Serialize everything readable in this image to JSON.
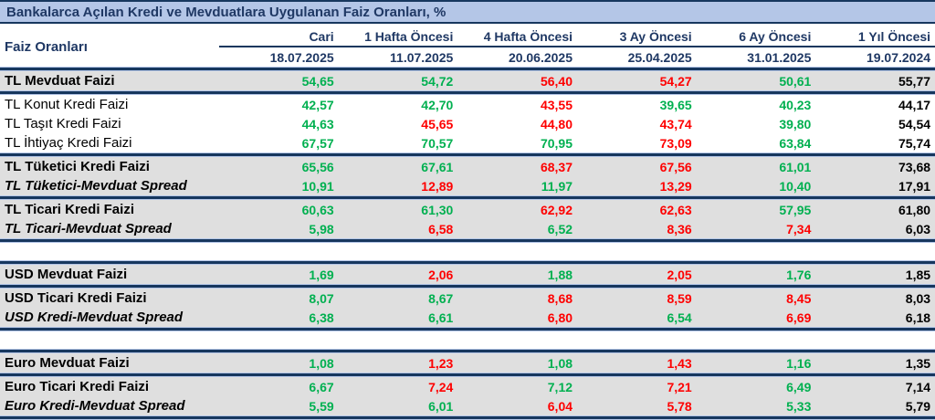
{
  "title": "Bankalarca Açılan Kredi ve Mevduatlara Uygulanan Faiz Oranları, %",
  "header": {
    "row_label": "Faiz Oranları",
    "columns": [
      {
        "period": "Cari",
        "date": "18.07.2025"
      },
      {
        "period": "1 Hafta Öncesi",
        "date": "11.07.2025"
      },
      {
        "period": "4 Hafta Öncesi",
        "date": "20.06.2025"
      },
      {
        "period": "3 Ay Öncesi",
        "date": "25.04.2025"
      },
      {
        "period": "6 Ay Öncesi",
        "date": "31.01.2025"
      },
      {
        "period": "1 Yıl Öncesi",
        "date": "19.07.2024"
      }
    ]
  },
  "colors": {
    "green": "#00b050",
    "red": "#fe0000",
    "black": "#000000",
    "navy": "#1f3864",
    "title_bg": "#b4c6e7",
    "row_gray": "#dfdfdf"
  },
  "rows": [
    {
      "label": "TL Mevduat Faizi",
      "style": "bold",
      "shade": true,
      "divider_after": true,
      "values": [
        {
          "value": "54,65",
          "color": "green"
        },
        {
          "value": "54,72",
          "color": "green"
        },
        {
          "value": "56,40",
          "color": "red"
        },
        {
          "value": "54,27",
          "color": "red"
        },
        {
          "value": "50,61",
          "color": "green"
        },
        {
          "value": "55,77",
          "color": "black"
        }
      ]
    },
    {
      "label": "TL Konut Kredi Faizi",
      "style": "regular",
      "shade": false,
      "values": [
        {
          "value": "42,57",
          "color": "green"
        },
        {
          "value": "42,70",
          "color": "green"
        },
        {
          "value": "43,55",
          "color": "red"
        },
        {
          "value": "39,65",
          "color": "green"
        },
        {
          "value": "40,23",
          "color": "green"
        },
        {
          "value": "44,17",
          "color": "black"
        }
      ]
    },
    {
      "label": "TL Taşıt Kredi Faizi",
      "style": "regular",
      "shade": false,
      "values": [
        {
          "value": "44,63",
          "color": "green"
        },
        {
          "value": "45,65",
          "color": "red"
        },
        {
          "value": "44,80",
          "color": "red"
        },
        {
          "value": "43,74",
          "color": "red"
        },
        {
          "value": "39,80",
          "color": "green"
        },
        {
          "value": "54,54",
          "color": "black"
        }
      ]
    },
    {
      "label": "TL İhtiyaç Kredi Faizi",
      "style": "regular",
      "shade": false,
      "divider_after": true,
      "values": [
        {
          "value": "67,57",
          "color": "green"
        },
        {
          "value": "70,57",
          "color": "green"
        },
        {
          "value": "70,95",
          "color": "green"
        },
        {
          "value": "73,09",
          "color": "red"
        },
        {
          "value": "63,84",
          "color": "green"
        },
        {
          "value": "75,74",
          "color": "black"
        }
      ]
    },
    {
      "label": "TL Tüketici Kredi Faizi",
      "style": "bold",
      "shade": true,
      "values": [
        {
          "value": "65,56",
          "color": "green"
        },
        {
          "value": "67,61",
          "color": "green"
        },
        {
          "value": "68,37",
          "color": "red"
        },
        {
          "value": "67,56",
          "color": "red"
        },
        {
          "value": "61,01",
          "color": "green"
        },
        {
          "value": "73,68",
          "color": "black"
        }
      ]
    },
    {
      "label": "TL Tüketici-Mevduat Spread",
      "style": "bold-italic",
      "shade": true,
      "divider_after": true,
      "values": [
        {
          "value": "10,91",
          "color": "green"
        },
        {
          "value": "12,89",
          "color": "red"
        },
        {
          "value": "11,97",
          "color": "green"
        },
        {
          "value": "13,29",
          "color": "red"
        },
        {
          "value": "10,40",
          "color": "green"
        },
        {
          "value": "17,91",
          "color": "black"
        }
      ]
    },
    {
      "label": "TL Ticari Kredi Faizi",
      "style": "bold",
      "shade": true,
      "values": [
        {
          "value": "60,63",
          "color": "green"
        },
        {
          "value": "61,30",
          "color": "green"
        },
        {
          "value": "62,92",
          "color": "red"
        },
        {
          "value": "62,63",
          "color": "red"
        },
        {
          "value": "57,95",
          "color": "green"
        },
        {
          "value": "61,80",
          "color": "black"
        }
      ]
    },
    {
      "label": "TL Ticari-Mevduat Spread",
      "style": "bold-italic",
      "shade": true,
      "divider_after": true,
      "gap_after": true,
      "values": [
        {
          "value": "5,98",
          "color": "green"
        },
        {
          "value": "6,58",
          "color": "red"
        },
        {
          "value": "6,52",
          "color": "green"
        },
        {
          "value": "8,36",
          "color": "red"
        },
        {
          "value": "7,34",
          "color": "red"
        },
        {
          "value": "6,03",
          "color": "black"
        }
      ]
    },
    {
      "label": "USD Mevduat Faizi",
      "style": "bold",
      "shade": true,
      "divider_before": true,
      "divider_after": true,
      "values": [
        {
          "value": "1,69",
          "color": "green"
        },
        {
          "value": "2,06",
          "color": "red"
        },
        {
          "value": "1,88",
          "color": "green"
        },
        {
          "value": "2,05",
          "color": "red"
        },
        {
          "value": "1,76",
          "color": "green"
        },
        {
          "value": "1,85",
          "color": "black"
        }
      ]
    },
    {
      "label": "USD Ticari Kredi Faizi",
      "style": "bold",
      "shade": true,
      "values": [
        {
          "value": "8,07",
          "color": "green"
        },
        {
          "value": "8,67",
          "color": "green"
        },
        {
          "value": "8,68",
          "color": "red"
        },
        {
          "value": "8,59",
          "color": "red"
        },
        {
          "value": "8,45",
          "color": "red"
        },
        {
          "value": "8,03",
          "color": "black"
        }
      ]
    },
    {
      "label": "USD Kredi-Mevduat Spread",
      "style": "bold-italic",
      "shade": true,
      "divider_after": true,
      "gap_after": true,
      "values": [
        {
          "value": "6,38",
          "color": "green"
        },
        {
          "value": "6,61",
          "color": "green"
        },
        {
          "value": "6,80",
          "color": "red"
        },
        {
          "value": "6,54",
          "color": "green"
        },
        {
          "value": "6,69",
          "color": "red"
        },
        {
          "value": "6,18",
          "color": "black"
        }
      ]
    },
    {
      "label": "Euro Mevduat Faizi",
      "style": "bold",
      "shade": true,
      "divider_before": true,
      "divider_after": true,
      "values": [
        {
          "value": "1,08",
          "color": "green"
        },
        {
          "value": "1,23",
          "color": "red"
        },
        {
          "value": "1,08",
          "color": "green"
        },
        {
          "value": "1,43",
          "color": "red"
        },
        {
          "value": "1,16",
          "color": "green"
        },
        {
          "value": "1,35",
          "color": "black"
        }
      ]
    },
    {
      "label": "Euro Ticari Kredi Faizi",
      "style": "bold",
      "shade": true,
      "values": [
        {
          "value": "6,67",
          "color": "green"
        },
        {
          "value": "7,24",
          "color": "red"
        },
        {
          "value": "7,12",
          "color": "green"
        },
        {
          "value": "7,21",
          "color": "red"
        },
        {
          "value": "6,49",
          "color": "green"
        },
        {
          "value": "7,14",
          "color": "black"
        }
      ]
    },
    {
      "label": "Euro Kredi-Mevduat Spread",
      "style": "bold-italic",
      "shade": true,
      "divider_after": true,
      "values": [
        {
          "value": "5,59",
          "color": "green"
        },
        {
          "value": "6,01",
          "color": "green"
        },
        {
          "value": "6,04",
          "color": "red"
        },
        {
          "value": "5,78",
          "color": "red"
        },
        {
          "value": "5,33",
          "color": "green"
        },
        {
          "value": "5,79",
          "color": "black"
        }
      ]
    }
  ]
}
